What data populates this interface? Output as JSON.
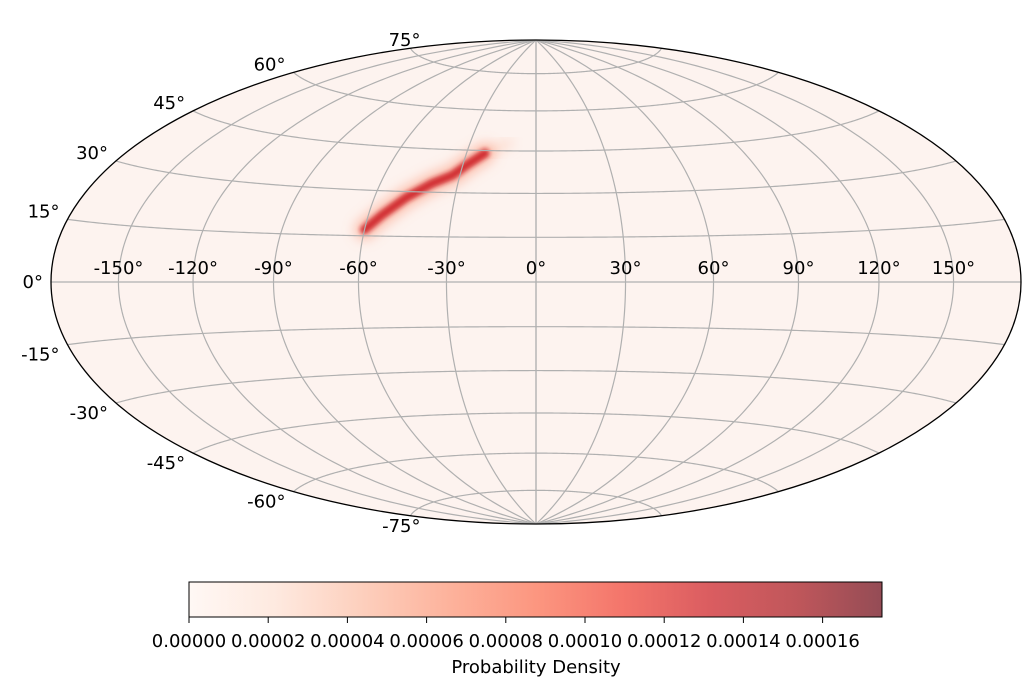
{
  "chart_data": {
    "type": "heatmap",
    "projection": "hammer",
    "grid": true,
    "longitude_ticks": [
      "-150°",
      "-120°",
      "-90°",
      "-60°",
      "-30°",
      "0°",
      "30°",
      "60°",
      "90°",
      "120°",
      "150°"
    ],
    "latitude_ticks": [
      "75°",
      "60°",
      "45°",
      "30°",
      "15°",
      "0°",
      "-15°",
      "-30°",
      "-45°",
      "-60°",
      "-75°"
    ],
    "hotspot": {
      "description_values": "elongated high-density arc",
      "path_lon_lat": [
        [
          -60,
          17
        ],
        [
          -55,
          22
        ],
        [
          -48,
          28
        ],
        [
          -40,
          33
        ],
        [
          -33,
          36
        ],
        [
          -28,
          40
        ],
        [
          -22,
          44
        ]
      ],
      "peak_density": 0.000175
    },
    "colorbar": {
      "label": "Probability Density",
      "min": 0.0,
      "max": 0.000175,
      "ticks": [
        "0.00000",
        "0.00002",
        "0.00004",
        "0.00006",
        "0.00008",
        "0.00010",
        "0.00012",
        "0.00014",
        "0.00016"
      ],
      "tick_values": [
        0,
        2e-05,
        4e-05,
        6e-05,
        8e-05,
        0.0001,
        0.00012,
        0.00014,
        0.00016
      ],
      "colormap": "Reds",
      "alpha": 0.7
    },
    "colors": {
      "background": "#fdf3ef",
      "low": "#fff5f0",
      "high": "#67000d",
      "grid": "#b0b0b0"
    }
  }
}
